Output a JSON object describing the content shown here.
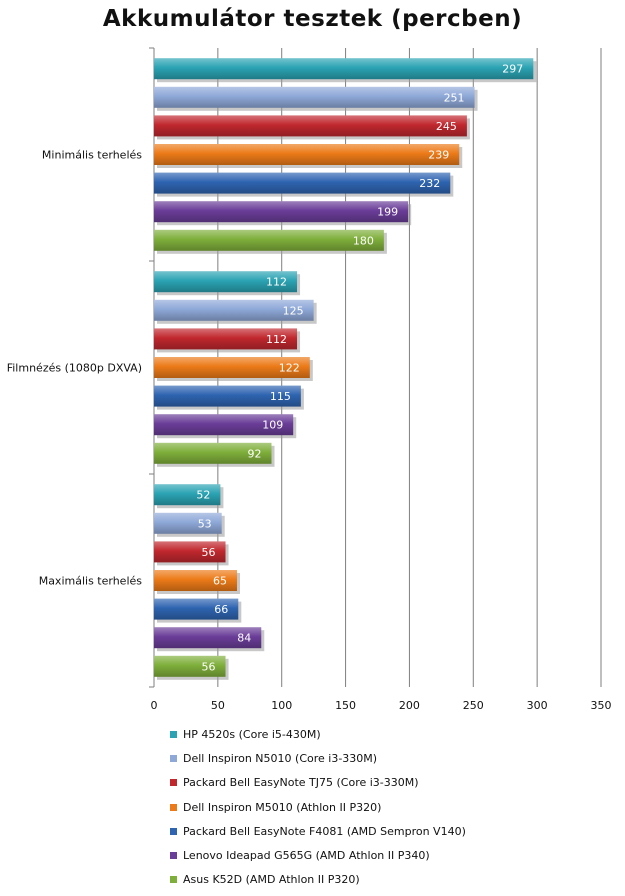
{
  "chart_data": {
    "type": "bar",
    "orientation": "horizontal",
    "title": "Akkumulátor tesztek (percben)",
    "categories": [
      "Minimális terhelés",
      "Filmnézés (1080p DXVA)",
      "Maximális terhelés"
    ],
    "series": [
      {
        "name": "HP 4520s (Core i5-430M)",
        "color": "#2ba3b3",
        "values": [
          297,
          112,
          52
        ]
      },
      {
        "name": "Dell Inspiron N5010 (Core i3-330M)",
        "color": "#8ea8d8",
        "values": [
          251,
          125,
          53
        ]
      },
      {
        "name": "Packard Bell EasyNote TJ75 (Core i3-330M)",
        "color": "#c0282e",
        "values": [
          245,
          112,
          56
        ]
      },
      {
        "name": "Dell Inspiron M5010 (Athlon II P320)",
        "color": "#ec7a18",
        "values": [
          239,
          122,
          65
        ]
      },
      {
        "name": "Packard Bell EasyNote F4081 (AMD Sempron V140)",
        "color": "#2e64b0",
        "values": [
          232,
          115,
          66
        ]
      },
      {
        "name": "Lenovo Ideapad G565G (AMD Athlon II P340)",
        "color": "#6a3d98",
        "values": [
          199,
          109,
          84
        ]
      },
      {
        "name": "Asus K52D (AMD Athlon II P320)",
        "color": "#7faf3b",
        "values": [
          180,
          92,
          56
        ]
      }
    ],
    "xlim": [
      0,
      350
    ],
    "xticks": [
      0,
      50,
      100,
      150,
      200,
      250,
      300,
      350
    ],
    "grid": "vertical",
    "legend": "bottom"
  }
}
